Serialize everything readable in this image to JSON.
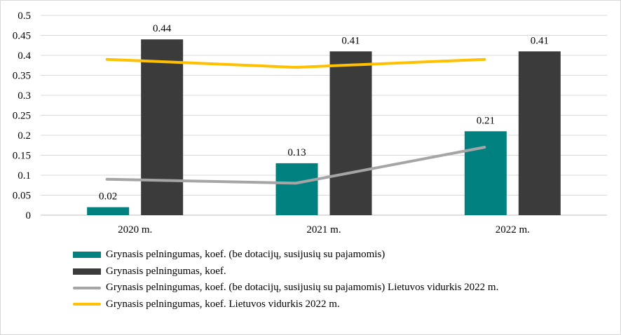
{
  "chart_data": {
    "type": "bar",
    "categories": [
      "2020 m.",
      "2021 m.",
      "2022 m."
    ],
    "ylim": [
      0,
      0.5
    ],
    "yticks": [
      "0",
      "0.05",
      "0.1",
      "0.15",
      "0.2",
      "0.25",
      "0.3",
      "0.35",
      "0.4",
      "0.45",
      "0.5"
    ],
    "grid": true,
    "legend_position": "bottom",
    "series": [
      {
        "name": "Grynasis pelningumas, koef. (be dotacijų, susijusių su pajamomis)",
        "kind": "bar",
        "color": "#00807f",
        "values": [
          0.02,
          0.13,
          0.21
        ],
        "labels": [
          "0.02",
          "0.13",
          "0.21"
        ]
      },
      {
        "name": "Grynasis pelningumas, koef.",
        "kind": "bar",
        "color": "#3b3b3b",
        "values": [
          0.44,
          0.41,
          0.41
        ],
        "labels": [
          "0.44",
          "0.41",
          "0.41"
        ]
      },
      {
        "name": "Grynasis pelningumas, koef. (be dotacijų, susijusių su pajamomis) Lietuvos vidurkis 2022 m.",
        "kind": "line",
        "color": "#a5a5a5",
        "values": [
          0.09,
          0.08,
          0.17
        ]
      },
      {
        "name": "Grynasis pelningumas, koef. Lietuvos vidurkis 2022 m.",
        "kind": "line",
        "color": "#ffc000",
        "values": [
          0.39,
          0.37,
          0.39
        ]
      }
    ]
  }
}
